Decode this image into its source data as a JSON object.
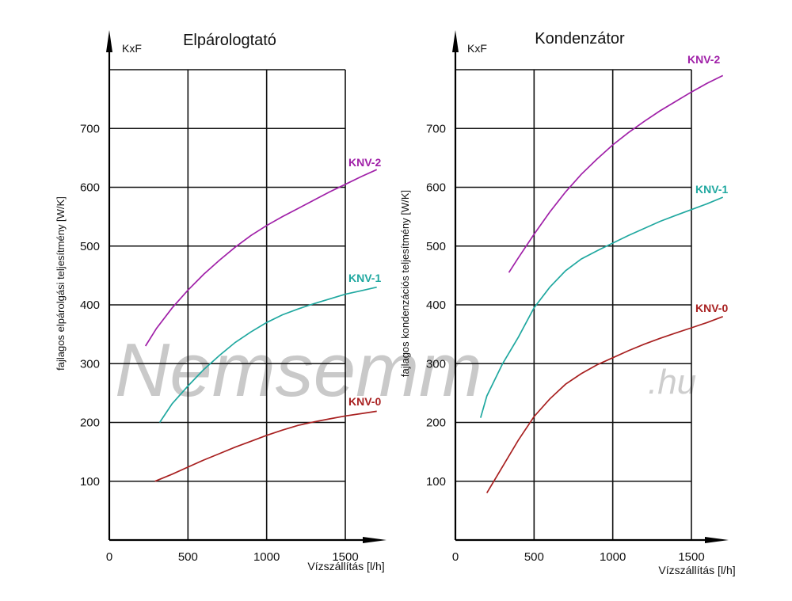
{
  "watermark": {
    "text": "Nemsemm",
    "suffix": ".hu"
  },
  "chart_data": [
    {
      "type": "line",
      "title": "Elpárologtató",
      "unit_label": "KxF",
      "xlabel": "Vízszállítás [l/h]",
      "ylabel": "fajlagos elpárolgási teljesítmény [W/K]",
      "xlim": [
        0,
        1750
      ],
      "ylim": [
        0,
        800
      ],
      "xticks": [
        0,
        500,
        1000,
        1500
      ],
      "yticks": [
        100,
        200,
        300,
        400,
        500,
        600,
        700
      ],
      "grid": true,
      "series": [
        {
          "name": "KNV-2",
          "color": "#a020a8",
          "x": [
            230,
            300,
            400,
            500,
            600,
            700,
            800,
            900,
            1000,
            1100,
            1200,
            1300,
            1400,
            1500,
            1600,
            1700
          ],
          "y": [
            330,
            360,
            395,
            425,
            452,
            476,
            498,
            518,
            535,
            550,
            564,
            578,
            592,
            605,
            618,
            630
          ]
        },
        {
          "name": "KNV-1",
          "color": "#20a8a0",
          "x": [
            320,
            400,
            500,
            600,
            700,
            800,
            900,
            1000,
            1100,
            1200,
            1300,
            1400,
            1500,
            1600,
            1700
          ],
          "y": [
            200,
            232,
            262,
            290,
            314,
            336,
            354,
            370,
            383,
            393,
            402,
            410,
            418,
            424,
            430
          ]
        },
        {
          "name": "KNV-0",
          "color": "#a82020",
          "x": [
            290,
            400,
            500,
            600,
            700,
            800,
            900,
            1000,
            1100,
            1200,
            1300,
            1400,
            1500,
            1600,
            1700
          ],
          "y": [
            100,
            112,
            124,
            136,
            147,
            158,
            168,
            178,
            187,
            195,
            201,
            206,
            211,
            215,
            219
          ]
        }
      ]
    },
    {
      "type": "line",
      "title": "Kondenzátor",
      "unit_label": "KxF",
      "xlabel": "Vízszállítás [l/h]",
      "ylabel": "fajlagos kondenzációs teljesítmény [W/K]",
      "xlim": [
        0,
        1750
      ],
      "ylim": [
        0,
        800
      ],
      "xticks": [
        0,
        500,
        1000,
        1500
      ],
      "yticks": [
        100,
        200,
        300,
        400,
        500,
        600,
        700
      ],
      "grid": true,
      "series": [
        {
          "name": "KNV-2",
          "color": "#a020a8",
          "x": [
            340,
            400,
            500,
            600,
            700,
            800,
            900,
            1000,
            1100,
            1200,
            1300,
            1400,
            1500,
            1600,
            1700
          ],
          "y": [
            455,
            480,
            520,
            558,
            592,
            622,
            648,
            672,
            693,
            712,
            730,
            746,
            762,
            777,
            790
          ]
        },
        {
          "name": "KNV-1",
          "color": "#20a8a0",
          "x": [
            160,
            200,
            300,
            400,
            500,
            600,
            700,
            800,
            900,
            1000,
            1100,
            1200,
            1300,
            1400,
            1500,
            1600,
            1700
          ],
          "y": [
            208,
            245,
            300,
            345,
            395,
            430,
            458,
            478,
            492,
            505,
            518,
            530,
            542,
            552,
            562,
            572,
            583
          ]
        },
        {
          "name": "KNV-0",
          "color": "#a82020",
          "x": [
            200,
            300,
            400,
            500,
            600,
            700,
            800,
            900,
            1000,
            1100,
            1200,
            1300,
            1400,
            1500,
            1600,
            1700
          ],
          "y": [
            80,
            125,
            170,
            210,
            240,
            265,
            283,
            298,
            310,
            322,
            333,
            343,
            352,
            361,
            370,
            380
          ]
        }
      ]
    }
  ]
}
